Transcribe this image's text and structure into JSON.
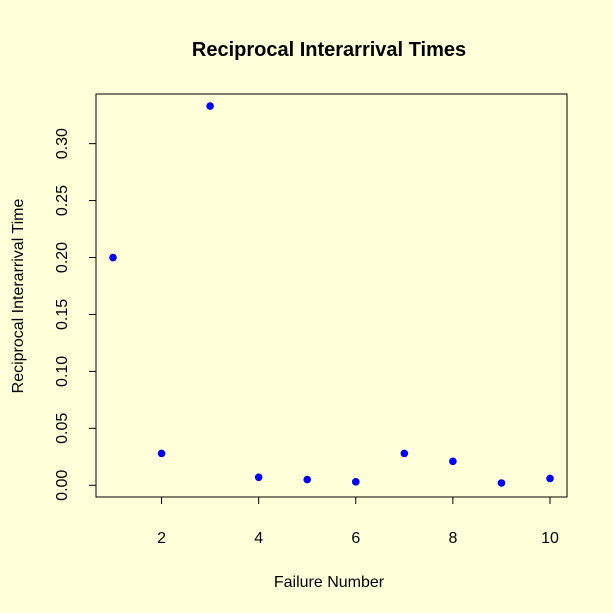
{
  "chart_data": {
    "type": "scatter",
    "title": "Reciprocal Interarrival Times",
    "xlabel": "Failure Number",
    "ylabel": "Reciprocal Interarrival Time",
    "x": [
      1,
      2,
      3,
      4,
      5,
      6,
      7,
      8,
      9,
      10
    ],
    "y": [
      0.2,
      0.028,
      0.333,
      0.007,
      0.005,
      0.003,
      0.028,
      0.021,
      0.002,
      0.006
    ],
    "xlim": [
      0.65,
      10.35
    ],
    "ylim": [
      -0.0103,
      0.3436
    ],
    "xticks": [
      2,
      4,
      6,
      8,
      10
    ],
    "xtick_labels": [
      "2",
      "4",
      "6",
      "8",
      "10"
    ],
    "yticks": [
      0.0,
      0.05,
      0.1,
      0.15,
      0.2,
      0.25,
      0.3
    ],
    "ytick_labels": [
      "0.00",
      "0.05",
      "0.10",
      "0.15",
      "0.20",
      "0.25",
      "0.30"
    ],
    "grid": false,
    "legend": "none",
    "colors": {
      "background": "#ffffd9",
      "points": "#0000ff",
      "axes": "#000000"
    }
  }
}
